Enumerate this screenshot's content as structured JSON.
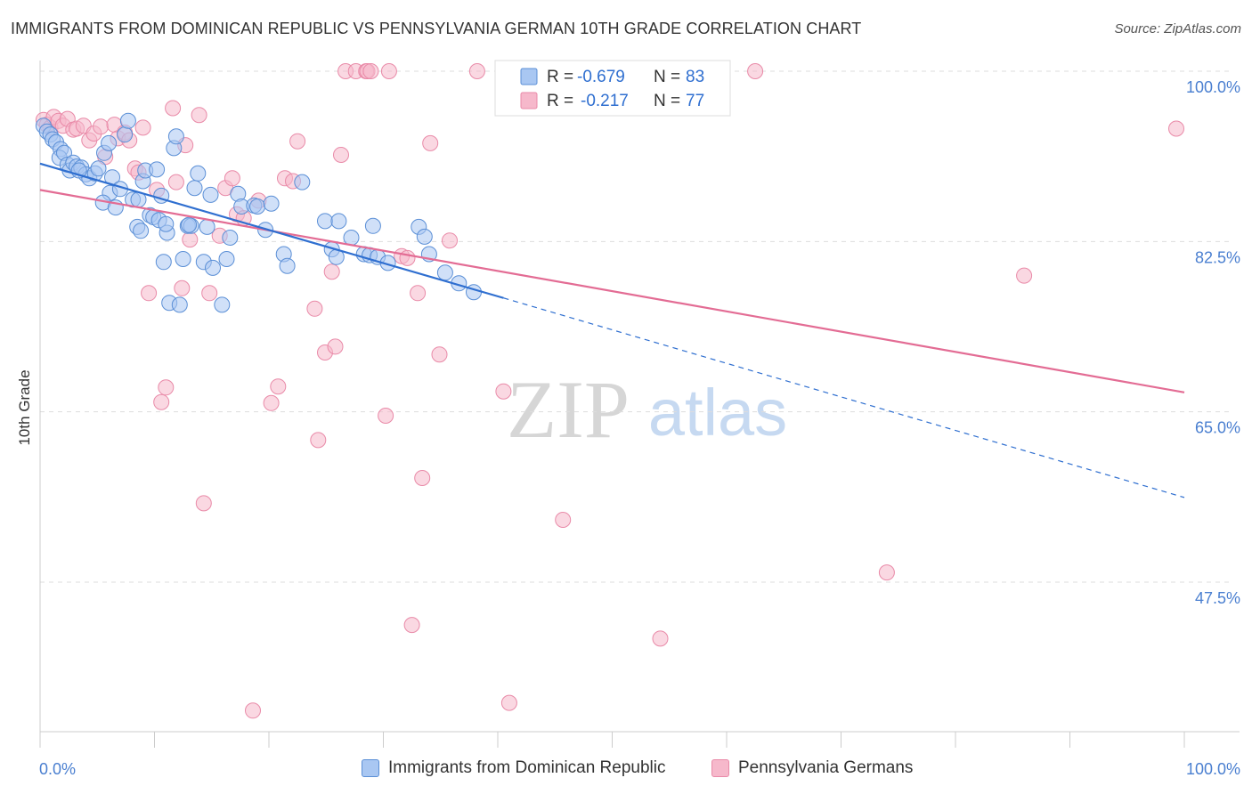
{
  "header": {
    "title": "IMMIGRANTS FROM DOMINICAN REPUBLIC VS PENNSYLVANIA GERMAN 10TH GRADE CORRELATION CHART",
    "source": "Source: ZipAtlas.com"
  },
  "watermark": {
    "zip": "ZIP",
    "atlas": "atlas"
  },
  "colors": {
    "blue_fill": "#a9c7f2",
    "blue_stroke": "#5b8fd6",
    "blue_line": "#2f6fd0",
    "pink_fill": "#f6b8cb",
    "pink_stroke": "#e98aa8",
    "pink_line": "#e36c94",
    "tick_label": "#4a7fd0",
    "grid": "#dddddd"
  },
  "stats": [
    {
      "r_label": "R =",
      "r_value": "-0.679",
      "n_label": "N =",
      "n_value": "83"
    },
    {
      "r_label": "R =",
      "r_value": "-0.217",
      "n_label": "N =",
      "n_value": "77"
    }
  ],
  "legend": {
    "items": [
      "Immigrants from Dominican Republic",
      "Pennsylvania Germans"
    ]
  },
  "chart_data": {
    "type": "scatter",
    "title": "IMMIGRANTS FROM DOMINICAN REPUBLIC VS PENNSYLVANIA GERMAN 10TH GRADE CORRELATION CHART",
    "xlabel": "",
    "ylabel": "10th Grade",
    "xlim": [
      0,
      100
    ],
    "ylim": [
      30,
      101
    ],
    "x_tick_labels": [
      "0.0%",
      "100.0%"
    ],
    "y_ticks": [
      47.5,
      65.0,
      82.5,
      100.0
    ],
    "y_tick_labels": [
      "47.5%",
      "65.0%",
      "82.5%",
      "100.0%"
    ],
    "grid": true,
    "legend_position": "bottom",
    "series": [
      {
        "name": "Immigrants from Dominican Republic",
        "color": "#a9c7f2",
        "r": -0.679,
        "n": 83,
        "trend": {
          "x": [
            0,
            40.5
          ],
          "y": [
            90.5,
            76.7
          ],
          "dashed_to": [
            100,
            56.2
          ]
        },
        "points": [
          [
            0.3,
            94.4
          ],
          [
            0.6,
            93.8
          ],
          [
            0.9,
            93.5
          ],
          [
            1.1,
            93.0
          ],
          [
            1.4,
            92.7
          ],
          [
            1.8,
            92.0
          ],
          [
            1.7,
            91.1
          ],
          [
            2.1,
            91.6
          ],
          [
            2.4,
            90.4
          ],
          [
            2.6,
            89.8
          ],
          [
            2.9,
            90.6
          ],
          [
            3.2,
            90.2
          ],
          [
            3.6,
            90.1
          ],
          [
            4.0,
            89.4
          ],
          [
            4.3,
            89.0
          ],
          [
            4.8,
            89.5
          ],
          [
            5.1,
            90.0
          ],
          [
            5.6,
            91.6
          ],
          [
            6.0,
            92.6
          ],
          [
            6.3,
            89.1
          ],
          [
            6.1,
            87.5
          ],
          [
            5.5,
            86.5
          ],
          [
            6.6,
            86.0
          ],
          [
            7.0,
            87.9
          ],
          [
            7.4,
            93.5
          ],
          [
            7.7,
            94.9
          ],
          [
            8.1,
            86.8
          ],
          [
            8.5,
            84.0
          ],
          [
            8.8,
            83.6
          ],
          [
            8.6,
            86.8
          ],
          [
            9.0,
            88.7
          ],
          [
            9.2,
            89.8
          ],
          [
            9.6,
            85.2
          ],
          [
            9.9,
            85.0
          ],
          [
            10.2,
            89.9
          ],
          [
            10.4,
            84.7
          ],
          [
            10.6,
            87.2
          ],
          [
            10.8,
            80.4
          ],
          [
            11.1,
            83.4
          ],
          [
            11.3,
            76.2
          ],
          [
            11.7,
            92.1
          ],
          [
            11.9,
            93.3
          ],
          [
            12.2,
            76.0
          ],
          [
            12.5,
            80.7
          ],
          [
            12.9,
            84.1
          ],
          [
            13.2,
            84.1
          ],
          [
            13.5,
            88.0
          ],
          [
            13.8,
            89.5
          ],
          [
            14.3,
            80.4
          ],
          [
            14.6,
            84.0
          ],
          [
            14.9,
            87.3
          ],
          [
            15.1,
            79.8
          ],
          [
            15.9,
            76.0
          ],
          [
            16.3,
            80.7
          ],
          [
            16.6,
            82.9
          ],
          [
            17.3,
            87.4
          ],
          [
            17.6,
            86.1
          ],
          [
            18.7,
            86.2
          ],
          [
            19.0,
            86.1
          ],
          [
            19.7,
            83.7
          ],
          [
            20.2,
            86.4
          ],
          [
            21.3,
            81.2
          ],
          [
            21.6,
            80.0
          ],
          [
            22.9,
            88.6
          ],
          [
            24.9,
            84.6
          ],
          [
            25.5,
            81.7
          ],
          [
            25.9,
            80.9
          ],
          [
            26.1,
            84.6
          ],
          [
            27.2,
            82.9
          ],
          [
            28.3,
            81.2
          ],
          [
            29.1,
            84.1
          ],
          [
            28.8,
            81.1
          ],
          [
            29.5,
            80.9
          ],
          [
            30.4,
            80.3
          ],
          [
            33.1,
            84.0
          ],
          [
            33.6,
            83.0
          ],
          [
            34.0,
            81.2
          ],
          [
            35.4,
            79.3
          ],
          [
            36.6,
            78.2
          ],
          [
            37.9,
            77.3
          ],
          [
            3.4,
            89.8
          ],
          [
            11.0,
            84.3
          ],
          [
            13.0,
            84.2
          ]
        ]
      },
      {
        "name": "Pennsylvania Germans",
        "color": "#f6b8cb",
        "r": -0.217,
        "n": 77,
        "trend": {
          "x": [
            0,
            100
          ],
          "y": [
            87.8,
            67.0
          ]
        },
        "points": [
          [
            0.3,
            95.0
          ],
          [
            0.6,
            94.5
          ],
          [
            0.9,
            94.2
          ],
          [
            1.2,
            95.3
          ],
          [
            1.6,
            94.9
          ],
          [
            2.0,
            94.4
          ],
          [
            2.4,
            95.1
          ],
          [
            2.9,
            94.0
          ],
          [
            3.2,
            94.1
          ],
          [
            3.8,
            94.4
          ],
          [
            4.3,
            92.9
          ],
          [
            4.7,
            93.6
          ],
          [
            5.3,
            94.3
          ],
          [
            5.7,
            91.2
          ],
          [
            6.5,
            94.5
          ],
          [
            6.8,
            93.1
          ],
          [
            7.4,
            93.7
          ],
          [
            7.8,
            92.9
          ],
          [
            8.3,
            90.0
          ],
          [
            8.6,
            89.6
          ],
          [
            9.0,
            94.2
          ],
          [
            9.5,
            77.2
          ],
          [
            10.2,
            87.8
          ],
          [
            10.6,
            66.0
          ],
          [
            11.0,
            67.5
          ],
          [
            11.6,
            96.2
          ],
          [
            11.9,
            88.6
          ],
          [
            12.4,
            77.7
          ],
          [
            12.7,
            92.4
          ],
          [
            13.1,
            82.7
          ],
          [
            13.9,
            95.5
          ],
          [
            14.3,
            55.6
          ],
          [
            14.8,
            77.2
          ],
          [
            15.7,
            83.1
          ],
          [
            16.2,
            88.0
          ],
          [
            16.8,
            89.0
          ],
          [
            17.2,
            85.3
          ],
          [
            17.8,
            84.9
          ],
          [
            18.6,
            34.3
          ],
          [
            19.1,
            86.7
          ],
          [
            20.2,
            65.9
          ],
          [
            20.8,
            67.6
          ],
          [
            21.4,
            89.0
          ],
          [
            22.1,
            88.7
          ],
          [
            22.5,
            92.8
          ],
          [
            24.0,
            75.6
          ],
          [
            24.3,
            62.1
          ],
          [
            24.9,
            71.1
          ],
          [
            25.5,
            79.4
          ],
          [
            25.8,
            71.7
          ],
          [
            26.3,
            91.4
          ],
          [
            26.7,
            100.0
          ],
          [
            27.6,
            100.0
          ],
          [
            28.5,
            100.0
          ],
          [
            28.6,
            100.0
          ],
          [
            28.9,
            100.0
          ],
          [
            30.2,
            64.6
          ],
          [
            30.5,
            100.0
          ],
          [
            31.6,
            81.0
          ],
          [
            32.1,
            80.8
          ],
          [
            32.5,
            43.1
          ],
          [
            33.0,
            77.2
          ],
          [
            33.4,
            58.2
          ],
          [
            34.1,
            92.6
          ],
          [
            34.9,
            70.9
          ],
          [
            35.8,
            82.6
          ],
          [
            38.2,
            100.0
          ],
          [
            40.5,
            67.1
          ],
          [
            41.0,
            35.1
          ],
          [
            45.7,
            53.9
          ],
          [
            46.5,
            100.0
          ],
          [
            48.5,
            100.0
          ],
          [
            54.2,
            41.7
          ],
          [
            62.5,
            100.0
          ],
          [
            74.0,
            48.5
          ],
          [
            86.0,
            79.0
          ],
          [
            99.3,
            94.1
          ]
        ]
      }
    ]
  }
}
